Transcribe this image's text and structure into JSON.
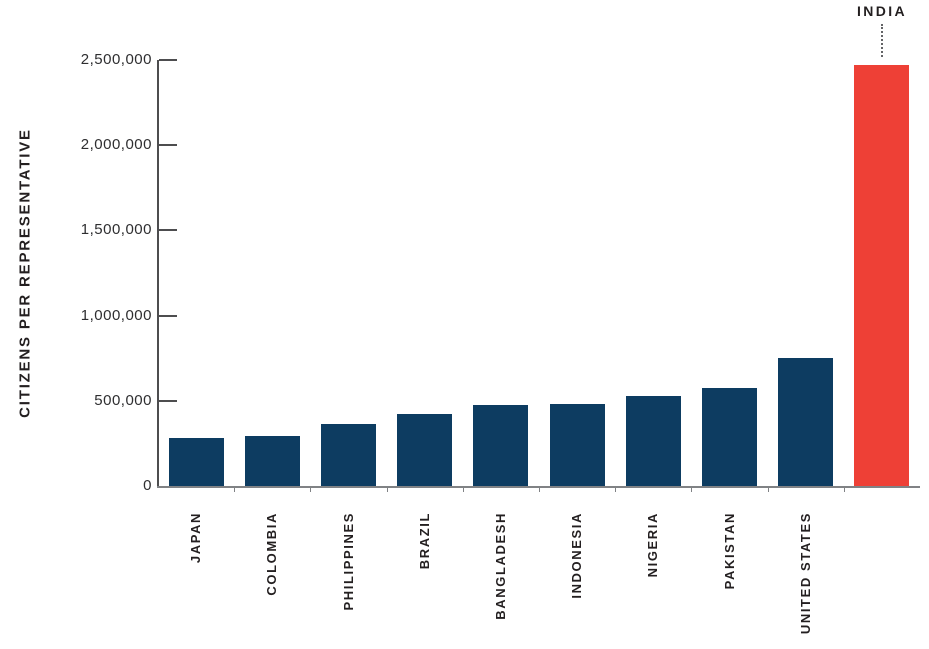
{
  "chart_data": {
    "type": "bar",
    "title": "",
    "ylabel": "CITIZENS PER REPRESENTATIVE",
    "xlabel": "",
    "categories": [
      "JAPAN",
      "COLOMBIA",
      "PHILIPPINES",
      "BRAZIL",
      "BANGLADESH",
      "INDONESIA",
      "NIGERIA",
      "PAKISTAN",
      "UNITED STATES",
      "INDIA"
    ],
    "values": [
      280000,
      295000,
      365000,
      420000,
      475000,
      480000,
      530000,
      575000,
      750000,
      2470000
    ],
    "ylim": [
      0,
      2500000
    ],
    "yticks": [
      0,
      500000,
      1000000,
      1500000,
      2000000,
      2500000
    ],
    "ytick_labels": [
      "0",
      "500,000",
      "1,000,000",
      "1,500,000",
      "2,000,000",
      "2,500,000"
    ],
    "bar_color": "#0d3c61",
    "highlight_index": 9,
    "highlight_color": "#ee4036",
    "annotation": {
      "text": "INDIA",
      "style": "callout-above-bar-with-dotted-line"
    },
    "grid": false,
    "legend": false
  }
}
